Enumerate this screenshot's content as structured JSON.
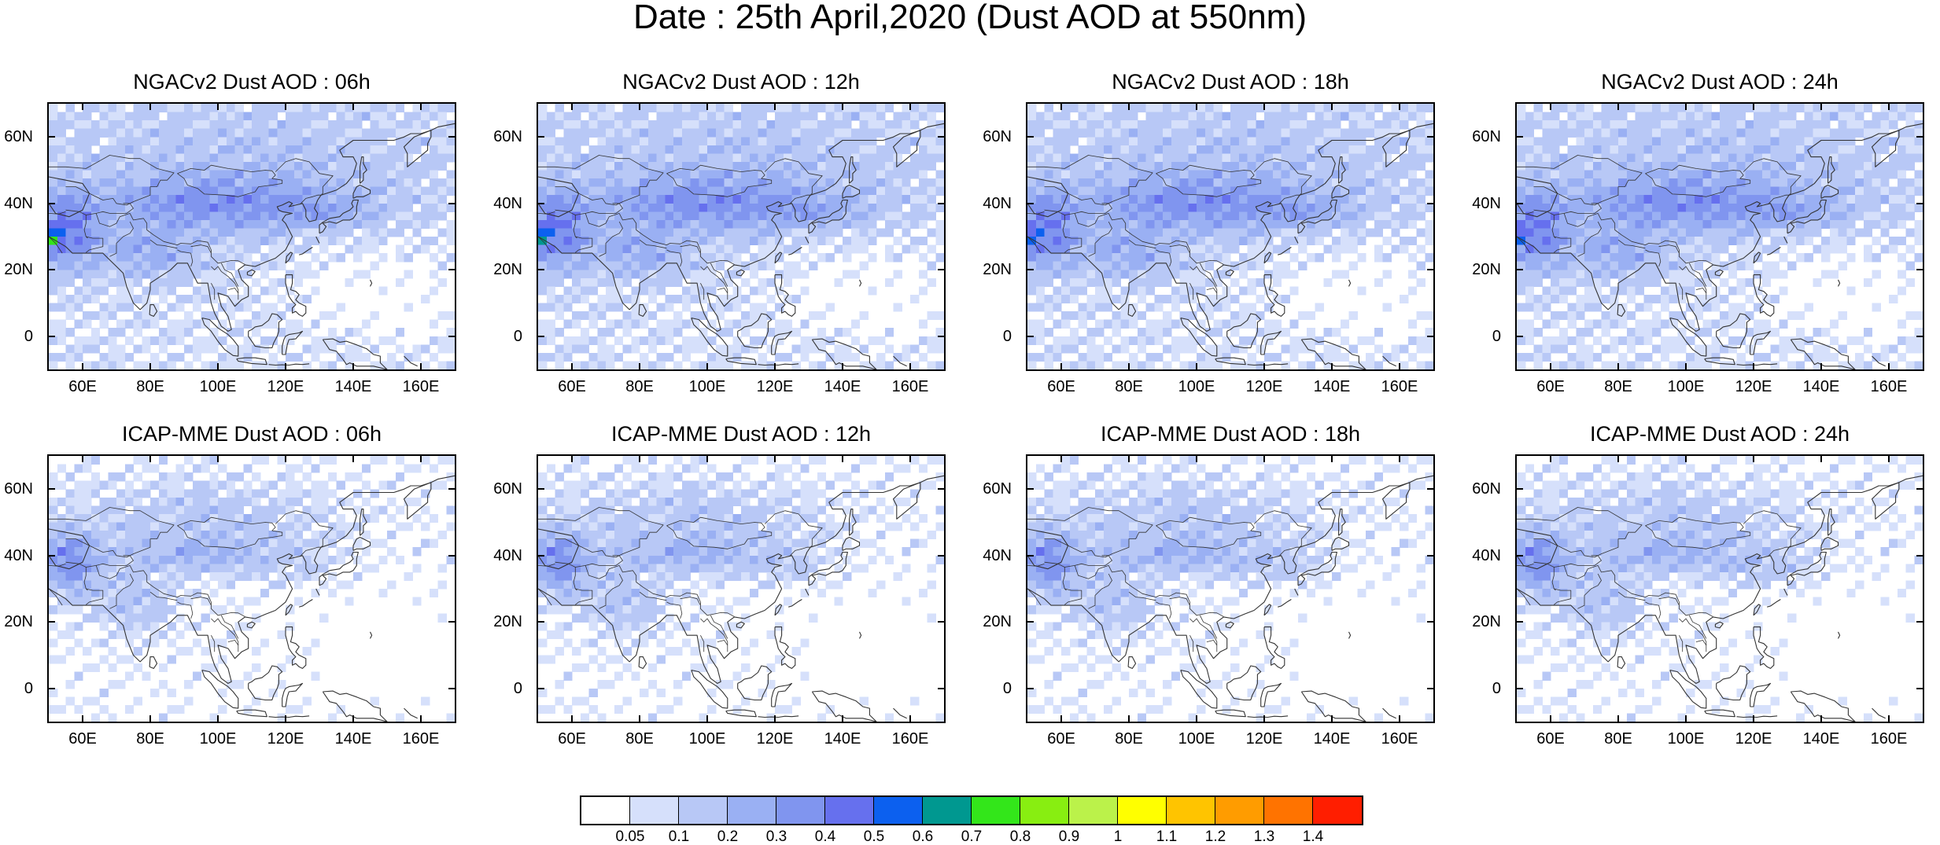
{
  "title": "Date : 25th April,2020 (Dust AOD at 550nm)",
  "panels": [
    {
      "title": "NGACv2 Dust AOD : 06h",
      "model": "ngac",
      "hour": 6
    },
    {
      "title": "NGACv2 Dust AOD : 12h",
      "model": "ngac",
      "hour": 12
    },
    {
      "title": "NGACv2 Dust AOD : 18h",
      "model": "ngac",
      "hour": 18
    },
    {
      "title": "NGACv2 Dust AOD : 24h",
      "model": "ngac",
      "hour": 24
    },
    {
      "title": "ICAP-MME Dust AOD : 06h",
      "model": "icap",
      "hour": 6
    },
    {
      "title": "ICAP-MME Dust AOD : 12h",
      "model": "icap",
      "hour": 12
    },
    {
      "title": "ICAP-MME Dust AOD : 18h",
      "model": "icap",
      "hour": 18
    },
    {
      "title": "ICAP-MME Dust AOD : 24h",
      "model": "icap",
      "hour": 24
    }
  ],
  "map": {
    "lon_range": [
      50,
      170
    ],
    "lat_range": [
      -10,
      70
    ],
    "lon_ticks": [
      60,
      80,
      100,
      120,
      140,
      160
    ],
    "lon_tick_labels": [
      "60E",
      "80E",
      "100E",
      "120E",
      "140E",
      "160E"
    ],
    "lat_ticks": [
      0,
      20,
      40,
      60
    ],
    "lat_tick_labels": [
      "0",
      "20N",
      "40N",
      "60N"
    ]
  },
  "colorbar": {
    "labels": [
      "0.05",
      "0.1",
      "0.2",
      "0.3",
      "0.4",
      "0.5",
      "0.6",
      "0.7",
      "0.8",
      "0.9",
      "1",
      "1.1",
      "1.2",
      "1.3",
      "1.4"
    ],
    "thresholds": [
      0.05,
      0.1,
      0.2,
      0.3,
      0.4,
      0.5,
      0.6,
      0.7,
      0.8,
      0.9,
      1.0,
      1.1,
      1.2,
      1.3,
      1.4
    ],
    "colors": [
      "#ffffff",
      "#d6e0fb",
      "#b8c8f6",
      "#9ab0f3",
      "#8095ef",
      "#6670ee",
      "#0c60ef",
      "#009890",
      "#33e61a",
      "#88ee11",
      "#bbf24a",
      "#ffff00",
      "#ffc400",
      "#ff9c00",
      "#ff7300",
      "#ff1e00"
    ]
  }
}
